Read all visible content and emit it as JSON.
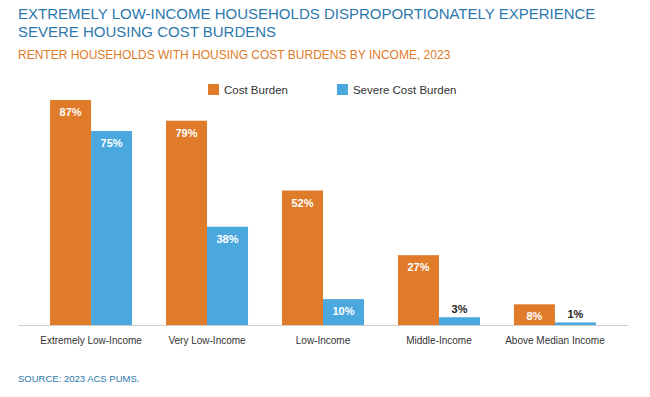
{
  "chart_data": {
    "type": "bar",
    "title": "EXTREMELY LOW-INCOME HOUSEHOLDS DISPROPORTIONATELY EXPERIENCE SEVERE HOUSING COST BURDENS",
    "subtitle": "RENTER HOUSEHOLDS WITH HOUSING COST BURDENS BY INCOME, 2023",
    "source": "SOURCE: 2023 ACS PUMS.",
    "categories": [
      "Extremely Low-Income",
      "Very Low-Income",
      "Low-Income",
      "Middle-Income",
      "Above Median Income"
    ],
    "series": [
      {
        "name": "Cost Burden",
        "color": "#e07b29",
        "values": [
          87,
          79,
          52,
          27,
          8
        ],
        "value_labels": [
          "87%",
          "79%",
          "52%",
          "27%",
          "8%"
        ]
      },
      {
        "name": "Severe Cost Burden",
        "color": "#4aa8de",
        "values": [
          75,
          38,
          10,
          3,
          1
        ],
        "value_labels": [
          "75%",
          "38%",
          "10%",
          "3%",
          "1%"
        ]
      }
    ],
    "data_labels": true,
    "legend": "top",
    "tick_labels": "x",
    "grid": false
  }
}
